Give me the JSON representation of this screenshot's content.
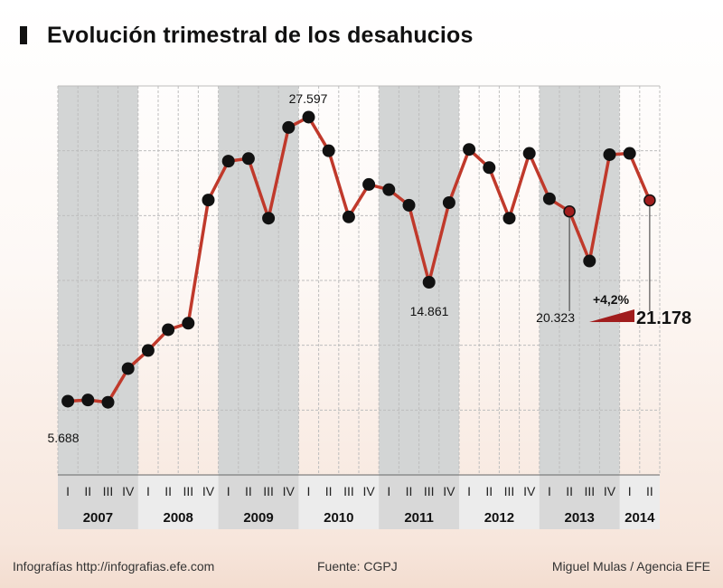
{
  "header": {
    "title": "Evolución trimestral de los desahucios"
  },
  "footer": {
    "left": "Infografías http://infografias.efe.com",
    "center": "Fuente: CGPJ",
    "right": "Miguel Mulas / Agencia EFE"
  },
  "colors": {
    "line": "#c0392b",
    "point": "#111111",
    "shade": "#d3d5d5",
    "axis_band": "#d8d8d8",
    "accent": "#a11d1d"
  },
  "chart_data": {
    "type": "line",
    "title": "Evolución trimestral de los desahucios",
    "xlabel": "",
    "ylabel": "",
    "grid": true,
    "quarter_labels": [
      "I",
      "II",
      "III",
      "IV"
    ],
    "years": [
      "2007",
      "2008",
      "2009",
      "2010",
      "2011",
      "2012",
      "2013",
      "2014"
    ],
    "x": [
      "2007-I",
      "2007-II",
      "2007-III",
      "2007-IV",
      "2008-I",
      "2008-II",
      "2008-III",
      "2008-IV",
      "2009-I",
      "2009-II",
      "2009-III",
      "2009-IV",
      "2010-I",
      "2010-II",
      "2010-III",
      "2010-IV",
      "2011-I",
      "2011-II",
      "2011-III",
      "2011-IV",
      "2012-I",
      "2012-II",
      "2012-III",
      "2012-IV",
      "2013-I",
      "2013-II",
      "2013-III",
      "2013-IV",
      "2014-I",
      "2014-II"
    ],
    "values": [
      5688,
      5780,
      5600,
      8200,
      9600,
      11200,
      11700,
      21200,
      24200,
      24400,
      19800,
      26800,
      27597,
      25000,
      19900,
      22400,
      22000,
      20800,
      14861,
      21000,
      25100,
      23700,
      19800,
      24800,
      21300,
      20323,
      16500,
      24700,
      24800,
      21178
    ],
    "ylim": [
      0,
      30000
    ],
    "annotations": [
      {
        "label": "5.688",
        "index": 0
      },
      {
        "label": "27.597",
        "index": 12
      },
      {
        "label": "14.861",
        "index": 18
      },
      {
        "label": "20.323",
        "index": 25
      },
      {
        "label": "21.178",
        "index": 29,
        "bold": true
      },
      {
        "label": "+4,2%",
        "bold": true
      }
    ]
  }
}
